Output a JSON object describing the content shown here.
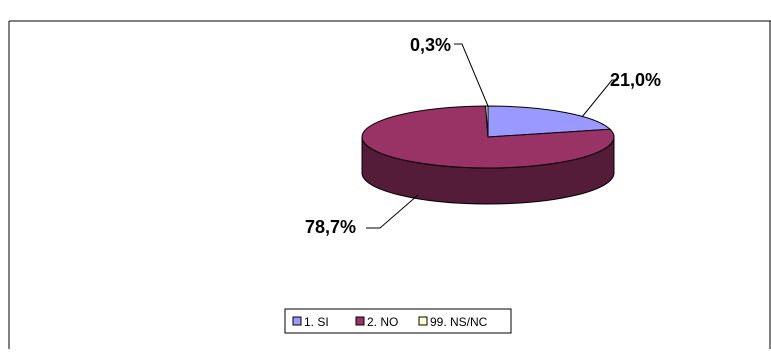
{
  "chart_data": {
    "type": "pie",
    "variant": "3d",
    "title": "",
    "categories": [
      "1. SI",
      "2. NO",
      "99. NS/NC"
    ],
    "values": [
      21.0,
      78.7,
      0.3
    ],
    "labels": [
      "21,0%",
      "78,7%",
      "0,3%"
    ],
    "colors": {
      "1. SI": "#9999ff",
      "2. NO": "#993366",
      "99. NS/NC": "#ffffcc"
    },
    "legend": {
      "position": "bottom",
      "entries": [
        "1. SI",
        "2. NO",
        "99. NS/NC"
      ]
    }
  }
}
